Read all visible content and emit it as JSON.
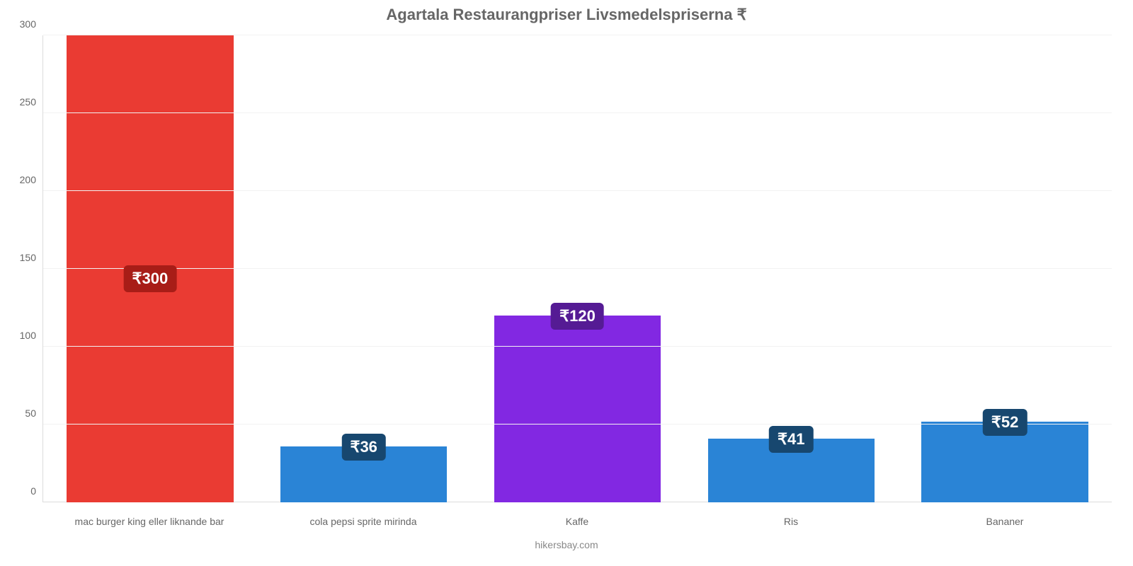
{
  "chart": {
    "type": "bar",
    "title": "Agartala Restaurangpriser Livsmedelspriserna ₹",
    "title_fontsize": 22,
    "title_color": "#666666",
    "footer": "hikersbay.com",
    "footer_color": "#888888",
    "background_color": "#ffffff",
    "grid_color": "#f2f2f2",
    "axis_color": "#dcdcdc",
    "tick_color": "#666666",
    "ylim": [
      0,
      300
    ],
    "ytick_step": 50,
    "yticks": [
      0,
      50,
      100,
      150,
      200,
      250,
      300
    ],
    "bar_width": 0.78,
    "categories": [
      "mac burger king eller liknande bar",
      "cola pepsi sprite mirinda",
      "Kaffe",
      "Ris",
      "Bananer"
    ],
    "values": [
      300,
      36,
      120,
      41,
      52
    ],
    "value_labels": [
      "₹300",
      "₹36",
      "₹120",
      "₹41",
      "₹52"
    ],
    "bar_colors": [
      "#ea3b33",
      "#2a84d6",
      "#8228e2",
      "#2a84d6",
      "#2a84d6"
    ],
    "badge_colors": [
      "#a81d17",
      "#17476f",
      "#551b94",
      "#17476f",
      "#17476f"
    ],
    "badge_fontsize": 22,
    "xtick_fontsize": 14,
    "ytick_fontsize": 14
  }
}
